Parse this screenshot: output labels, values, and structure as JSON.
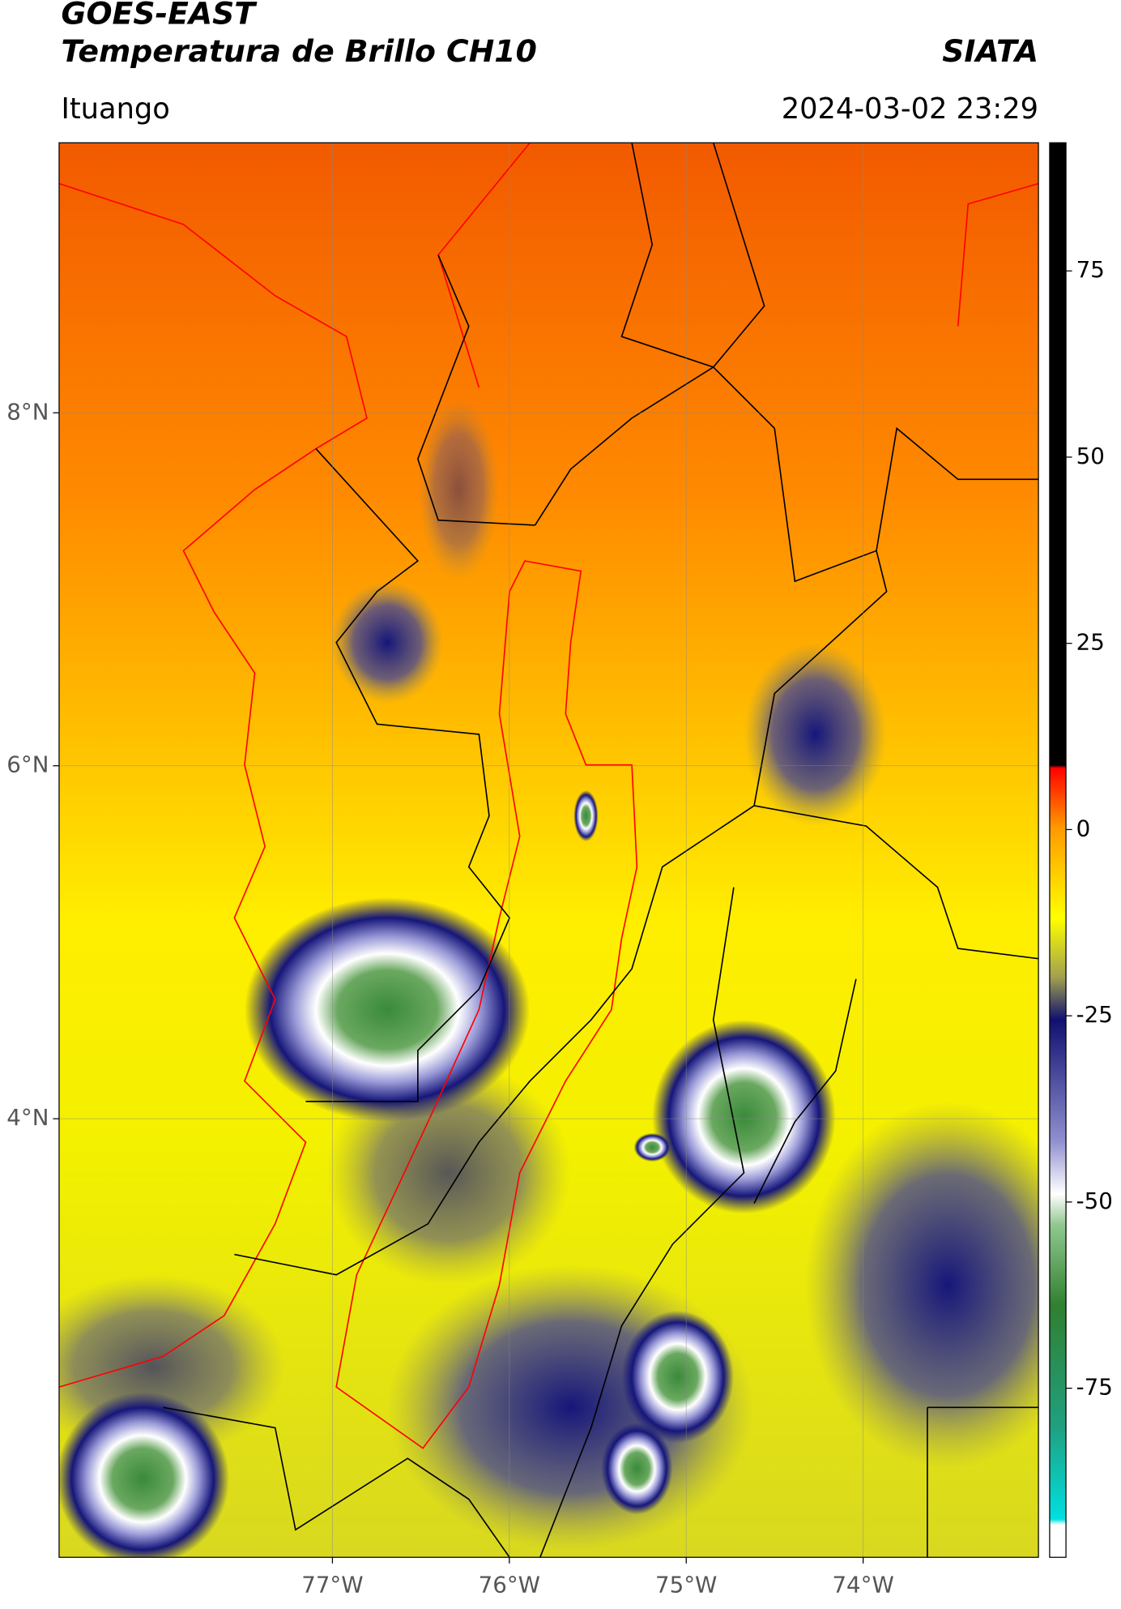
{
  "chart_data": {
    "type": "map",
    "title": "GOES-EAST",
    "subtitle": "Temperatura de Brillo CH10",
    "source": "SIATA",
    "location": "Ituango",
    "timestamp": "2024-03-02 23:29",
    "xlim": [
      -78.545,
      -73.009
    ],
    "ylim": [
      1.515,
      9.53
    ],
    "xticks": [
      {
        "value": -77,
        "label": "77°W"
      },
      {
        "value": -76,
        "label": "76°W"
      },
      {
        "value": -75,
        "label": "75°W"
      },
      {
        "value": -74,
        "label": "74°W"
      }
    ],
    "yticks": [
      {
        "value": 4,
        "label": "4°N"
      },
      {
        "value": 6,
        "label": "6°N"
      },
      {
        "value": 8,
        "label": "8°N"
      }
    ],
    "grid": true,
    "colorbar": {
      "lim": [
        -97.7,
        92.2
      ],
      "ticks": [
        75,
        50,
        25,
        0,
        -25,
        -50,
        -75
      ]
    }
  }
}
